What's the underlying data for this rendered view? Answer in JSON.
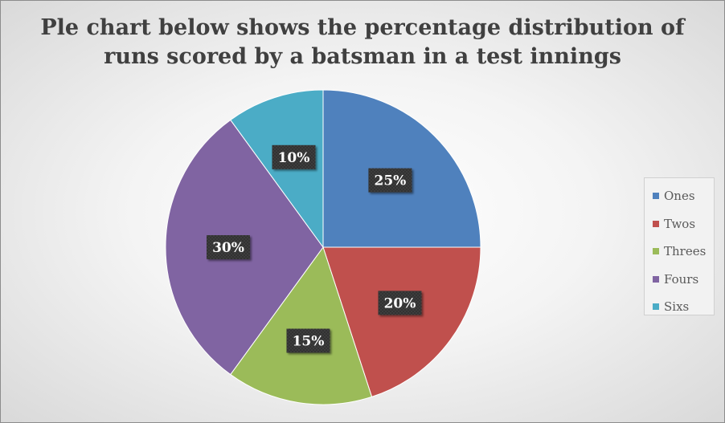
{
  "chart_data": {
    "type": "pie",
    "title_lines": [
      "Ple chart below shows the percentage distribution of",
      "runs scored by a batsman in a test innings"
    ],
    "categories": [
      "Ones",
      "Twos",
      "Threes",
      "Fours",
      "Sixs"
    ],
    "values": [
      25,
      20,
      15,
      30,
      10
    ],
    "data_labels": [
      "25%",
      "20%",
      "15%",
      "30%",
      "10%"
    ],
    "colors": [
      "#4f81bd",
      "#c0504d",
      "#9bbb59",
      "#8064a2",
      "#4bacc6"
    ],
    "legend_position": "right"
  }
}
